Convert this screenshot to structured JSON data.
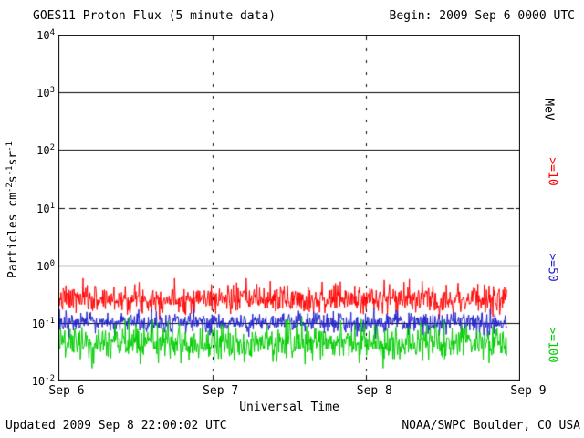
{
  "header": {
    "title": "GOES11 Proton Flux (5 minute data)",
    "begin_label": "Begin: 2009 Sep 6 0000 UTC"
  },
  "footer": {
    "updated": "Updated 2009 Sep 8 22:00:02 UTC",
    "source": "NOAA/SWPC Boulder, CO USA"
  },
  "chart_data": {
    "type": "line",
    "title": "GOES11 Proton Flux (5 minute data)",
    "x_axis": {
      "label": "Universal Time",
      "ticks": [
        "Sep 6",
        "Sep 7",
        "Sep 8",
        "Sep 9"
      ]
    },
    "y_axis": {
      "scale": "log",
      "ylim": [
        0.01,
        10000
      ],
      "tick_base": "10",
      "tick_exponents": [
        4,
        3,
        2,
        1,
        0,
        -1,
        -2
      ],
      "label_text_1": "Particles cm",
      "label_sup_1": "-2",
      "label_text_2": "s",
      "label_sup_2": "-1",
      "label_text_3": "sr",
      "label_sup_3": "-1"
    },
    "unit_label": "MeV",
    "gridlines": {
      "horizontal_solid_exponents": [
        3,
        2,
        0,
        -1
      ],
      "vertical_dotted_at_ticks": [
        "Sep 7",
        "Sep 8"
      ]
    },
    "threshold_line": {
      "value": 10,
      "style": "dashed"
    },
    "points_per_day": 288,
    "data_end_fraction": 0.972,
    "series": [
      {
        "name": ">=10",
        "color": "#ff0000",
        "approx_level": 0.26,
        "log10_noise_sigma": 0.12,
        "approx_range": [
          0.12,
          0.55
        ],
        "seed": 7
      },
      {
        "name": ">=50",
        "color": "#2222cc",
        "approx_level": 0.1,
        "log10_noise_sigma": 0.09,
        "approx_range": [
          0.06,
          0.18
        ],
        "seed": 13
      },
      {
        "name": ">=100",
        "color": "#00cc00",
        "approx_level": 0.046,
        "log10_noise_sigma": 0.15,
        "approx_range": [
          0.02,
          0.1
        ],
        "seed": 29
      }
    ]
  }
}
